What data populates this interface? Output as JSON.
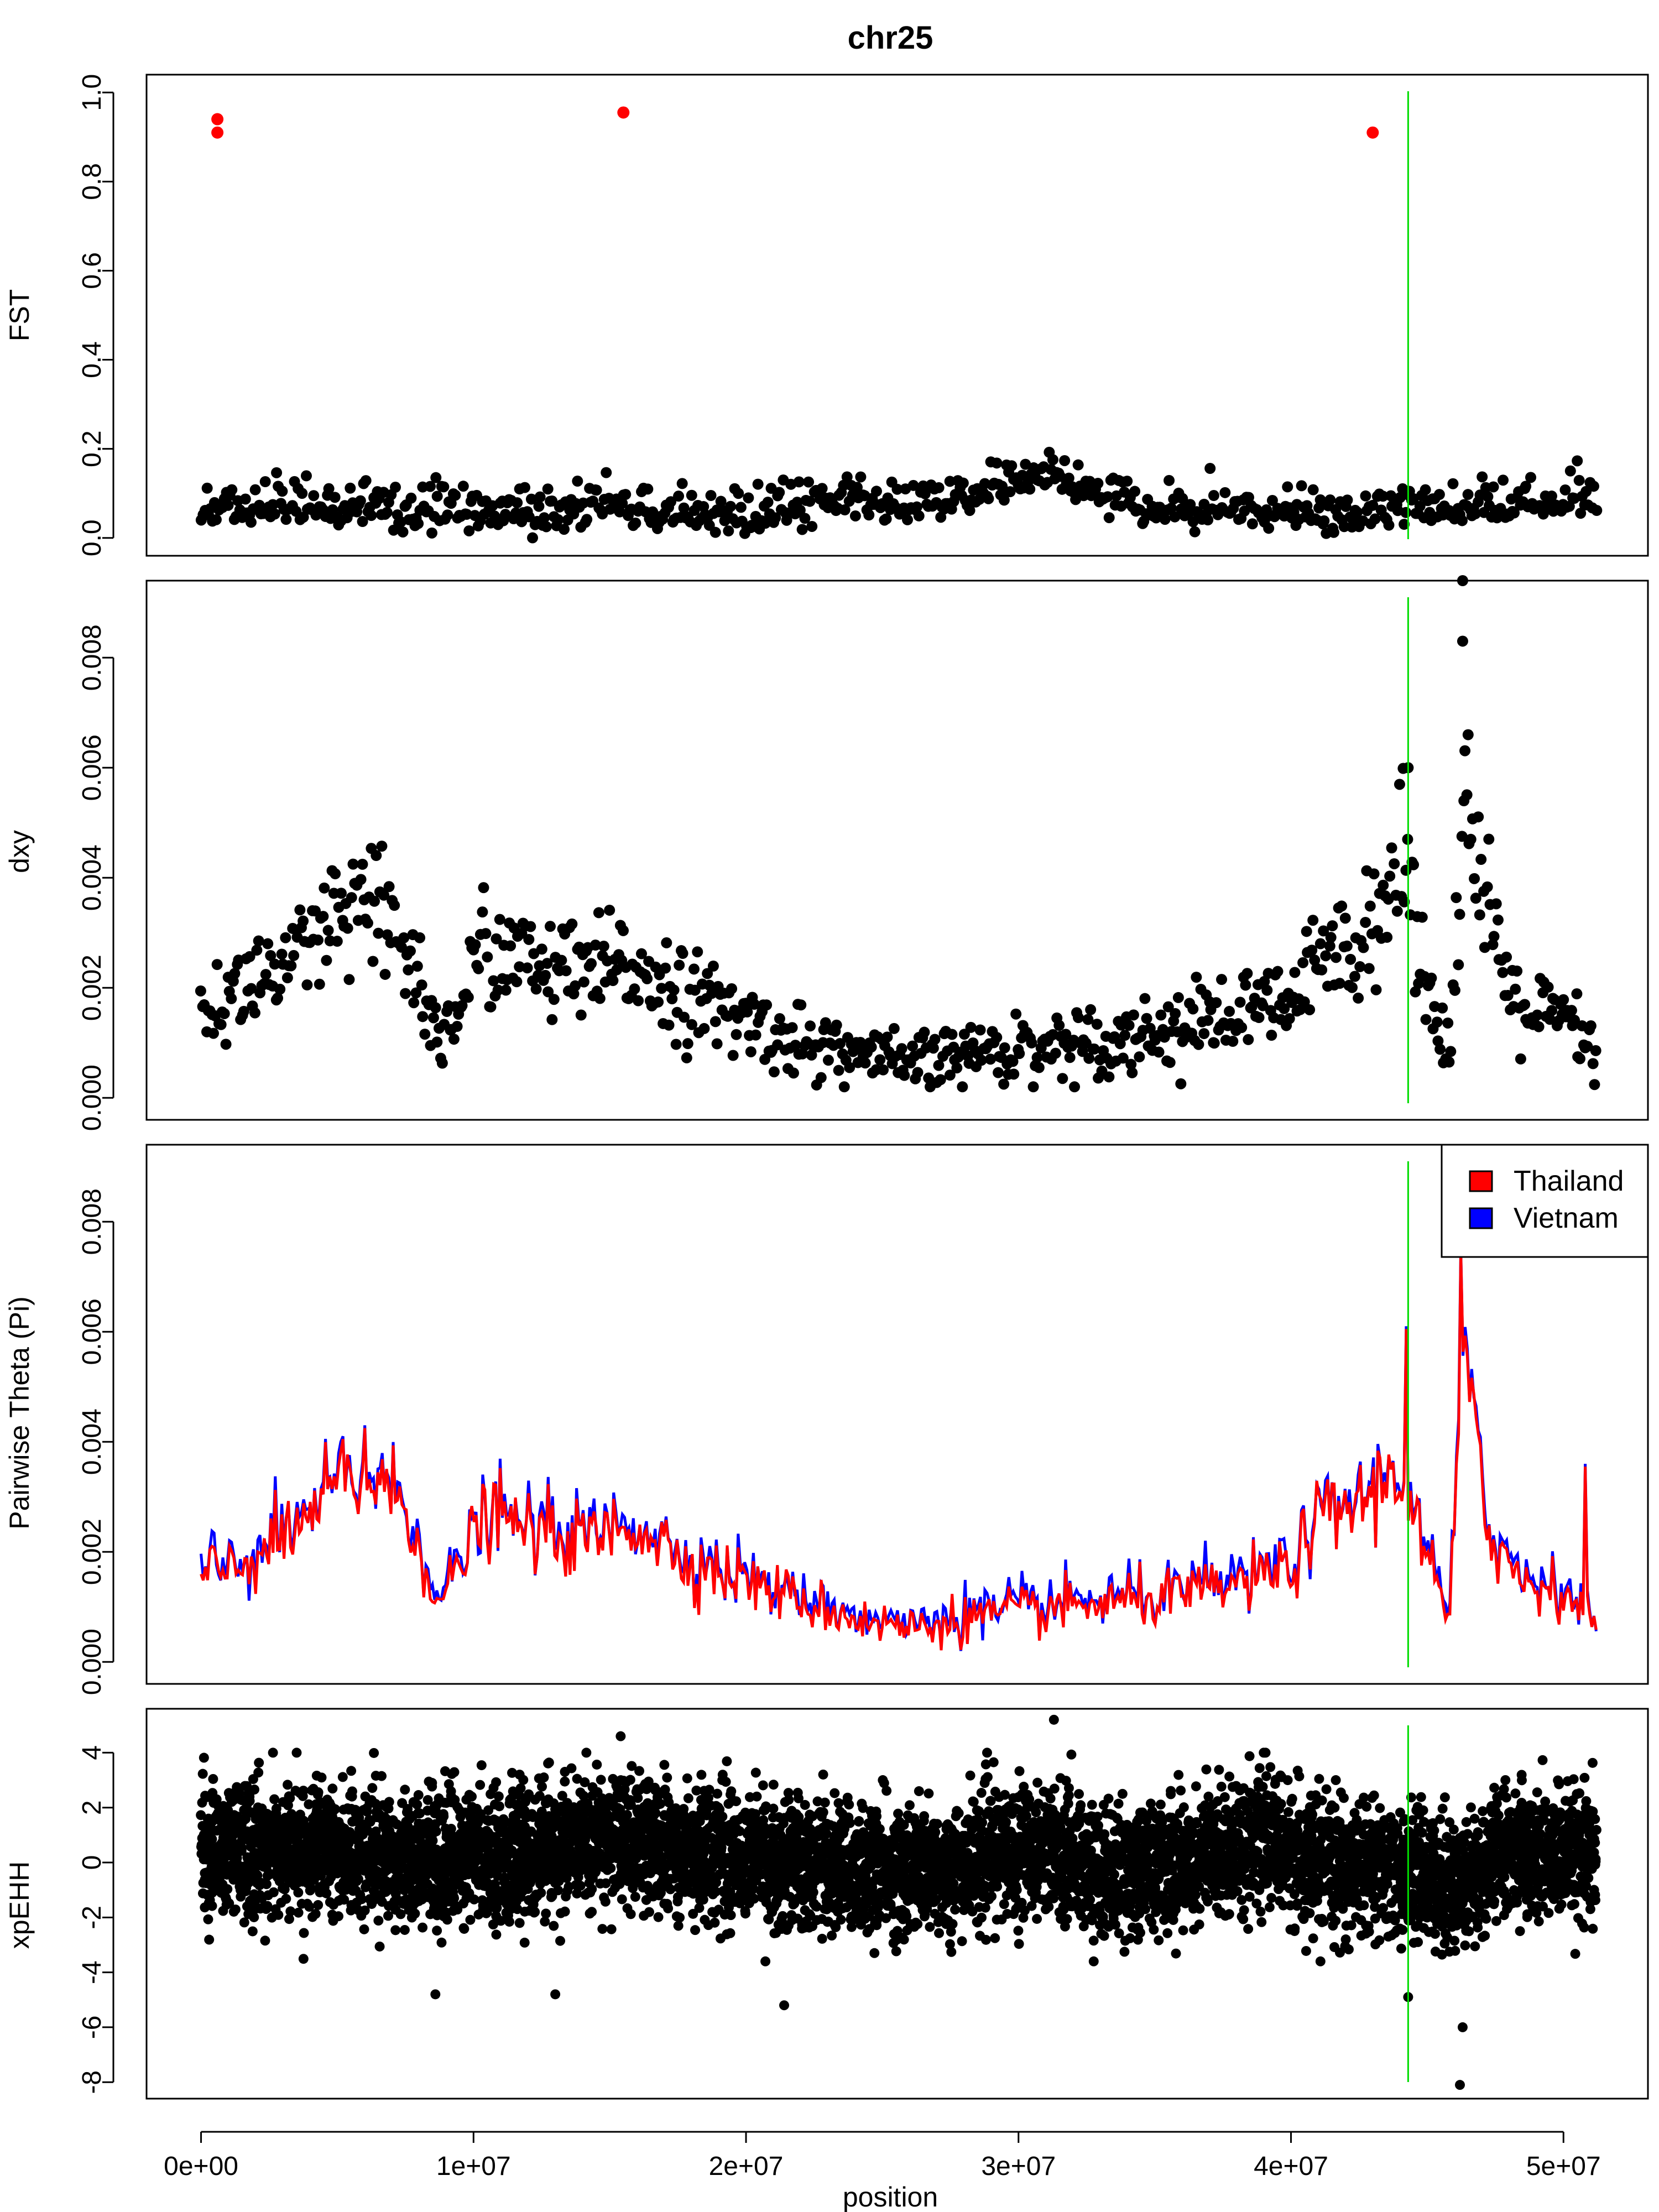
{
  "title": "chr25",
  "xlabel": "position",
  "x_ticks": [
    {
      "value": 0,
      "label": "0e+00"
    },
    {
      "value": 10000000,
      "label": "1e+07"
    },
    {
      "value": 20000000,
      "label": "2e+07"
    },
    {
      "value": 30000000,
      "label": "3e+07"
    },
    {
      "value": 40000000,
      "label": "4e+07"
    },
    {
      "value": 50000000,
      "label": "5e+07"
    }
  ],
  "colors": {
    "points": "#000000",
    "outlier": "#ff0000",
    "marker_line": "#00dd00",
    "thailand": "#ff0000",
    "vietnam": "#0000ff"
  },
  "chart_data": [
    {
      "type": "scatter",
      "ylabel": "FST",
      "xlim": [
        -2000000,
        53100000
      ],
      "ylim": [
        -0.04,
        1.04
      ],
      "y_ticks": [
        {
          "value": 0.0,
          "label": "0.0"
        },
        {
          "value": 0.2,
          "label": "0.2"
        },
        {
          "value": 0.4,
          "label": "0.4"
        },
        {
          "value": 0.6,
          "label": "0.6"
        },
        {
          "value": 0.8,
          "label": "0.8"
        },
        {
          "value": 1.0,
          "label": "1.0"
        }
      ],
      "highlight_points": [
        {
          "x": 600000,
          "y": 0.94
        },
        {
          "x": 600000,
          "y": 0.91
        },
        {
          "x": 15500000,
          "y": 0.955
        },
        {
          "x": 43000000,
          "y": 0.91
        }
      ],
      "profile": [
        [
          0,
          0.06
        ],
        [
          3000000,
          0.07
        ],
        [
          6000000,
          0.06
        ],
        [
          9000000,
          0.06
        ],
        [
          12000000,
          0.05
        ],
        [
          15000000,
          0.07
        ],
        [
          17000000,
          0.06
        ],
        [
          20000000,
          0.05
        ],
        [
          22000000,
          0.07
        ],
        [
          24000000,
          0.08
        ],
        [
          26000000,
          0.07
        ],
        [
          28000000,
          0.08
        ],
        [
          30000000,
          0.14
        ],
        [
          32000000,
          0.13
        ],
        [
          33000000,
          0.1
        ],
        [
          35000000,
          0.06
        ],
        [
          38000000,
          0.07
        ],
        [
          40000000,
          0.05
        ],
        [
          42000000,
          0.05
        ],
        [
          44000000,
          0.06
        ],
        [
          47000000,
          0.07
        ],
        [
          50000000,
          0.08
        ],
        [
          51200000,
          0.09
        ]
      ],
      "marker_line_x": 44300000,
      "n_points": 720
    },
    {
      "type": "scatter",
      "ylabel": "dxy",
      "xlim": [
        -2000000,
        53100000
      ],
      "ylim": [
        -0.0004,
        0.0094
      ],
      "y_ticks": [
        {
          "value": 0.0,
          "label": "0.000"
        },
        {
          "value": 0.002,
          "label": "0.002"
        },
        {
          "value": 0.004,
          "label": "0.004"
        },
        {
          "value": 0.006,
          "label": "0.006"
        },
        {
          "value": 0.008,
          "label": "0.008"
        }
      ],
      "profile": [
        [
          0,
          0.0015
        ],
        [
          1000000,
          0.0018
        ],
        [
          2000000,
          0.0022
        ],
        [
          3000000,
          0.0023
        ],
        [
          4000000,
          0.0026
        ],
        [
          5000000,
          0.0032
        ],
        [
          6000000,
          0.0034
        ],
        [
          7000000,
          0.0031
        ],
        [
          8000000,
          0.0022
        ],
        [
          8800000,
          0.0009
        ],
        [
          9500000,
          0.0018
        ],
        [
          10500000,
          0.0028
        ],
        [
          12000000,
          0.0024
        ],
        [
          14000000,
          0.0022
        ],
        [
          16000000,
          0.0024
        ],
        [
          18000000,
          0.0018
        ],
        [
          20000000,
          0.0014
        ],
        [
          22000000,
          0.001
        ],
        [
          24000000,
          0.0008
        ],
        [
          26000000,
          0.0006
        ],
        [
          28000000,
          0.0008
        ],
        [
          30000000,
          0.0009
        ],
        [
          32000000,
          0.001
        ],
        [
          34000000,
          0.0011
        ],
        [
          36000000,
          0.0013
        ],
        [
          38000000,
          0.0015
        ],
        [
          40000000,
          0.0017
        ],
        [
          41000000,
          0.0024
        ],
        [
          42000000,
          0.0028
        ],
        [
          43000000,
          0.0034
        ],
        [
          44300000,
          0.0042
        ],
        [
          45000000,
          0.0022
        ],
        [
          45800000,
          0.0008
        ],
        [
          46400000,
          0.0055
        ],
        [
          47000000,
          0.0035
        ],
        [
          48000000,
          0.0019
        ],
        [
          49000000,
          0.0015
        ],
        [
          50000000,
          0.0014
        ],
        [
          51200000,
          0.0008
        ]
      ],
      "extreme_points": [
        {
          "x": 46300000,
          "y": 0.0094
        },
        {
          "x": 46300000,
          "y": 0.0083
        },
        {
          "x": 44300000,
          "y": 0.006
        },
        {
          "x": 46500000,
          "y": 0.0066
        }
      ],
      "marker_line_x": 44300000,
      "n_points": 780
    },
    {
      "type": "line",
      "ylabel": "Pairwise Theta (Pi)",
      "xlim": [
        -2000000,
        53100000
      ],
      "ylim": [
        -0.0004,
        0.0094
      ],
      "y_ticks": [
        {
          "value": 0.0,
          "label": "0.000"
        },
        {
          "value": 0.002,
          "label": "0.002"
        },
        {
          "value": 0.004,
          "label": "0.004"
        },
        {
          "value": 0.006,
          "label": "0.006"
        },
        {
          "value": 0.008,
          "label": "0.008"
        }
      ],
      "legend_position": "top-right",
      "series": [
        {
          "name": "Vietnam",
          "color": "#0000ff",
          "offset": 0.0001
        },
        {
          "name": "Thailand",
          "color": "#ff0000",
          "offset": 0.0
        }
      ],
      "profile": [
        [
          0,
          0.0015
        ],
        [
          1000000,
          0.0017
        ],
        [
          2000000,
          0.0019
        ],
        [
          3500000,
          0.0024
        ],
        [
          5000000,
          0.0032
        ],
        [
          6500000,
          0.0033
        ],
        [
          7500000,
          0.0028
        ],
        [
          8800000,
          0.001
        ],
        [
          9500000,
          0.0018
        ],
        [
          10500000,
          0.0027
        ],
        [
          12000000,
          0.0024
        ],
        [
          14000000,
          0.0022
        ],
        [
          16000000,
          0.0025
        ],
        [
          18000000,
          0.0018
        ],
        [
          20000000,
          0.0015
        ],
        [
          22000000,
          0.0011
        ],
        [
          24000000,
          0.0008
        ],
        [
          26000000,
          0.0006
        ],
        [
          28000000,
          0.0008
        ],
        [
          30000000,
          0.0009
        ],
        [
          32000000,
          0.001
        ],
        [
          34000000,
          0.0011
        ],
        [
          36000000,
          0.0012
        ],
        [
          38000000,
          0.0014
        ],
        [
          40000000,
          0.0017
        ],
        [
          41000000,
          0.0026
        ],
        [
          42500000,
          0.0029
        ],
        [
          44000000,
          0.0035
        ],
        [
          44800000,
          0.0022
        ],
        [
          45800000,
          0.0007
        ],
        [
          46300000,
          0.0052
        ],
        [
          46800000,
          0.0048
        ],
        [
          47300000,
          0.0022
        ],
        [
          48500000,
          0.0015
        ],
        [
          50000000,
          0.0013
        ],
        [
          51200000,
          0.0006
        ]
      ],
      "spikes": [
        {
          "x": 44250000,
          "y": 0.0061
        },
        {
          "x": 46250000,
          "y": 0.0075
        },
        {
          "x": 5200000,
          "y": 0.0041
        },
        {
          "x": 6000000,
          "y": 0.0043
        },
        {
          "x": 50800000,
          "y": 0.0036
        }
      ],
      "marker_line_x": 44300000,
      "n_points": 640
    },
    {
      "type": "scatter",
      "ylabel": "xpEHH",
      "xlim": [
        -2000000,
        53100000
      ],
      "ylim": [
        -8.6,
        5.6
      ],
      "y_ticks": [
        {
          "value": -8,
          "label": "-8"
        },
        {
          "value": -6,
          "label": "-6"
        },
        {
          "value": -4,
          "label": "-4"
        },
        {
          "value": -2,
          "label": "-2"
        },
        {
          "value": 0,
          "label": "0"
        },
        {
          "value": 2,
          "label": "2"
        },
        {
          "value": 4,
          "label": "4"
        }
      ],
      "profile": [
        [
          0,
          0.4
        ],
        [
          5000000,
          0.4
        ],
        [
          9000000,
          0.2
        ],
        [
          12000000,
          0.3
        ],
        [
          15000000,
          0.8
        ],
        [
          18000000,
          0.5
        ],
        [
          21000000,
          0.1
        ],
        [
          24000000,
          -0.2
        ],
        [
          27000000,
          -0.4
        ],
        [
          29000000,
          0.3
        ],
        [
          31000000,
          0.6
        ],
        [
          33000000,
          -0.4
        ],
        [
          36000000,
          0.0
        ],
        [
          39000000,
          0.9
        ],
        [
          41000000,
          -0.2
        ],
        [
          43000000,
          -0.2
        ],
        [
          45000000,
          -0.5
        ],
        [
          46000000,
          -0.8
        ],
        [
          48000000,
          0.3
        ],
        [
          50000000,
          0.2
        ],
        [
          51200000,
          0.0
        ]
      ],
      "extreme_points": [
        {
          "x": 46200000,
          "y": -8.1
        },
        {
          "x": 46300000,
          "y": -6.0
        },
        {
          "x": 31300000,
          "y": 5.2
        },
        {
          "x": 15400000,
          "y": 4.6
        },
        {
          "x": 8600000,
          "y": -4.8
        },
        {
          "x": 13000000,
          "y": -4.8
        },
        {
          "x": 21400000,
          "y": -5.2
        },
        {
          "x": 44300000,
          "y": -4.9
        }
      ],
      "marker_line_x": 44300000,
      "n_points": 6500
    }
  ]
}
